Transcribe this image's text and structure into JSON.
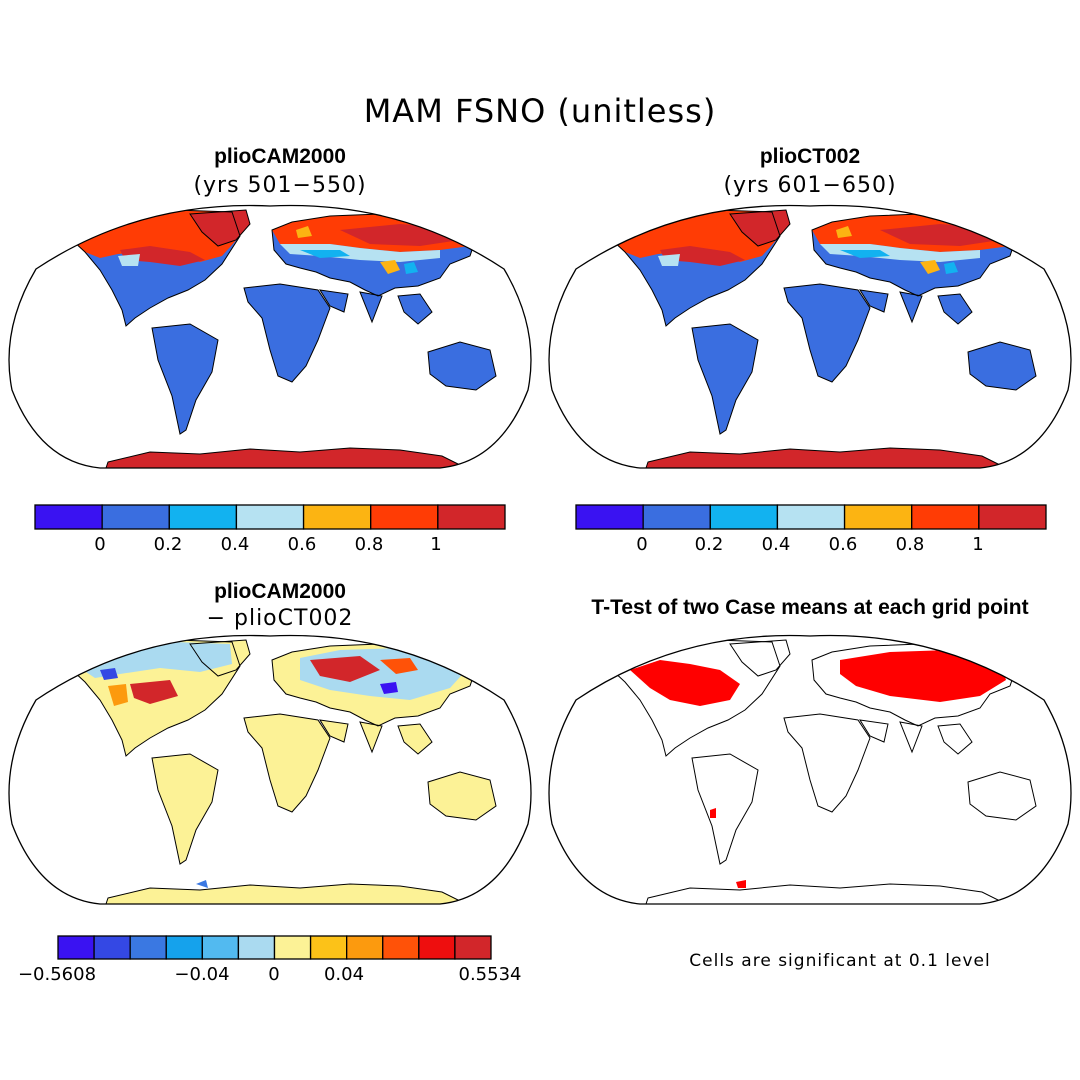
{
  "title": "MAM FSNO (unitless)",
  "panels": [
    {
      "title": "plioCAM2000",
      "subtitle": "(yrs 501−550)"
    },
    {
      "title": "plioCT002",
      "subtitle": "(yrs 601−650)"
    },
    {
      "title": "plioCAM2000",
      "subtitle": "− plioCT002"
    },
    {
      "title": "T-Test of two Case means at each grid point",
      "subtitle": ""
    }
  ],
  "colorbars": {
    "field": {
      "colors": [
        "#3a12f2",
        "#3a6ee0",
        "#12b2f0",
        "#b6e2f2",
        "#fcb412",
        "#ff3c05",
        "#d2262a"
      ],
      "tick_labels": [
        "0",
        "0.2",
        "0.4",
        "0.6",
        "0.8",
        "1"
      ]
    },
    "difference": {
      "colors": [
        "#3a12f2",
        "#3448e4",
        "#3a78e2",
        "#15a2ec",
        "#52baf0",
        "#aadaf0",
        "#fcf296",
        "#fcc218",
        "#fc9a0e",
        "#ff5208",
        "#ee0e0e",
        "#d2262a"
      ],
      "tick_labels": [
        "−0.5608",
        "−0.04",
        "0",
        "0.04",
        "0.5534"
      ]
    }
  },
  "significance_note": "Cells are significant at 0.1 level"
}
